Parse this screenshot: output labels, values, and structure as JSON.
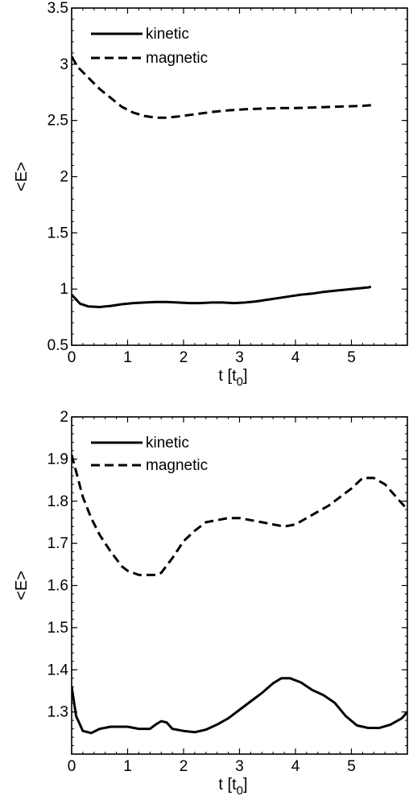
{
  "chart_data": [
    {
      "type": "line",
      "xlabel": "t [t",
      "xlabel_sub": "0",
      "xlabel_close": "]",
      "ylabel": "<E>",
      "xlim": [
        0,
        6
      ],
      "ylim": [
        0.5,
        3.5
      ],
      "xticks": [
        0,
        1,
        2,
        3,
        4,
        5
      ],
      "yticks": [
        0.5,
        1,
        1.5,
        2,
        2.5,
        3,
        3.5
      ],
      "legend_position": "top-left",
      "series": [
        {
          "name": "kinetic",
          "style": "solid",
          "x": [
            0,
            0.15,
            0.3,
            0.5,
            0.7,
            0.9,
            1.1,
            1.3,
            1.5,
            1.7,
            1.9,
            2.1,
            2.3,
            2.5,
            2.7,
            2.9,
            3.1,
            3.3,
            3.5,
            3.7,
            3.9,
            4.1,
            4.3,
            4.5,
            4.7,
            4.9,
            5.1,
            5.3,
            5.35
          ],
          "y": [
            0.95,
            0.87,
            0.845,
            0.84,
            0.85,
            0.865,
            0.875,
            0.88,
            0.885,
            0.885,
            0.88,
            0.875,
            0.875,
            0.88,
            0.88,
            0.875,
            0.88,
            0.89,
            0.905,
            0.92,
            0.935,
            0.95,
            0.96,
            0.975,
            0.985,
            0.995,
            1.005,
            1.015,
            1.02
          ]
        },
        {
          "name": "magnetic",
          "style": "dashed",
          "x": [
            0,
            0.1,
            0.3,
            0.5,
            0.7,
            0.9,
            1.1,
            1.3,
            1.5,
            1.7,
            1.9,
            2.2,
            2.5,
            2.8,
            3.1,
            3.4,
            3.7,
            4.0,
            4.3,
            4.6,
            4.9,
            5.2,
            5.35
          ],
          "y": [
            3.07,
            2.98,
            2.88,
            2.78,
            2.7,
            2.62,
            2.57,
            2.54,
            2.525,
            2.525,
            2.535,
            2.555,
            2.575,
            2.59,
            2.6,
            2.605,
            2.61,
            2.61,
            2.615,
            2.62,
            2.625,
            2.63,
            2.635
          ]
        }
      ]
    },
    {
      "type": "line",
      "xlabel": "t [t",
      "xlabel_sub": "0",
      "xlabel_close": "]",
      "ylabel": "<E>",
      "xlim": [
        0,
        6
      ],
      "ylim": [
        1.2,
        2.0
      ],
      "xticks": [
        0,
        1,
        2,
        3,
        4,
        5
      ],
      "yticks": [
        1.3,
        1.4,
        1.5,
        1.6,
        1.7,
        1.8,
        1.9,
        2
      ],
      "legend_position": "top-left",
      "series": [
        {
          "name": "kinetic",
          "style": "solid",
          "x": [
            0,
            0.08,
            0.2,
            0.35,
            0.5,
            0.7,
            0.9,
            1.0,
            1.2,
            1.4,
            1.5,
            1.6,
            1.7,
            1.8,
            2.0,
            2.2,
            2.4,
            2.6,
            2.8,
            3.0,
            3.2,
            3.4,
            3.6,
            3.75,
            3.9,
            4.1,
            4.3,
            4.5,
            4.7,
            4.9,
            5.1,
            5.3,
            5.5,
            5.7,
            5.9,
            6.0
          ],
          "y": [
            1.36,
            1.29,
            1.255,
            1.25,
            1.26,
            1.265,
            1.265,
            1.265,
            1.26,
            1.26,
            1.27,
            1.278,
            1.275,
            1.26,
            1.255,
            1.252,
            1.258,
            1.27,
            1.285,
            1.305,
            1.325,
            1.345,
            1.368,
            1.38,
            1.38,
            1.37,
            1.352,
            1.34,
            1.322,
            1.29,
            1.268,
            1.262,
            1.262,
            1.27,
            1.285,
            1.3
          ]
        },
        {
          "name": "magnetic",
          "style": "dashed",
          "x": [
            0,
            0.1,
            0.2,
            0.35,
            0.5,
            0.7,
            0.9,
            1.0,
            1.2,
            1.4,
            1.5,
            1.6,
            1.8,
            2.0,
            2.2,
            2.4,
            2.6,
            2.8,
            3.0,
            3.2,
            3.4,
            3.6,
            3.8,
            4.0,
            4.2,
            4.4,
            4.6,
            4.8,
            5.0,
            5.2,
            5.4,
            5.6,
            5.8,
            6.0
          ],
          "y": [
            1.91,
            1.86,
            1.81,
            1.76,
            1.72,
            1.68,
            1.645,
            1.635,
            1.625,
            1.625,
            1.625,
            1.63,
            1.665,
            1.705,
            1.73,
            1.75,
            1.755,
            1.76,
            1.76,
            1.755,
            1.75,
            1.745,
            1.74,
            1.745,
            1.76,
            1.775,
            1.79,
            1.81,
            1.83,
            1.855,
            1.855,
            1.84,
            1.81,
            1.78
          ]
        }
      ]
    }
  ]
}
